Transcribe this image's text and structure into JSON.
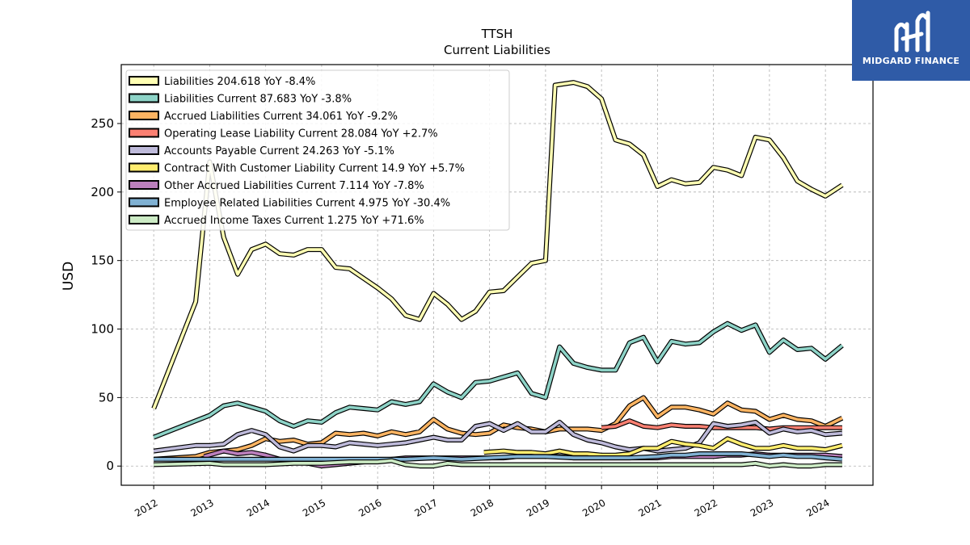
{
  "chart_data": {
    "type": "line",
    "title": "TTSH",
    "subtitle": "Current  Liabilities",
    "ylabel": "USD",
    "xlabel": "",
    "ylim": [
      -14,
      293
    ],
    "xlim": [
      2011.42,
      2024.85
    ],
    "yticks": [
      0,
      50,
      100,
      150,
      200,
      250
    ],
    "xtick_values": [
      2012,
      2013,
      2014,
      2015,
      2016,
      2017,
      2018,
      2019,
      2020,
      2021,
      2022,
      2023,
      2024
    ],
    "xtick_labels": [
      "2012",
      "2013",
      "2014",
      "2015",
      "2016",
      "2017",
      "2018",
      "2019",
      "2020",
      "2021",
      "2022",
      "2023",
      "2024"
    ],
    "grid": true,
    "legend_position": "top-left",
    "series": [
      {
        "name": "Liabilities",
        "legend": "Liabilities  204.618 YoY -8.4%",
        "color": "#ffffb3",
        "x": [
          2012.0,
          2012.75,
          2013.0,
          2013.25,
          2013.5,
          2013.75,
          2014.0,
          2014.25,
          2014.5,
          2014.75,
          2015.0,
          2015.25,
          2015.5,
          2015.75,
          2016.0,
          2016.25,
          2016.5,
          2016.75,
          2017.0,
          2017.25,
          2017.5,
          2017.75,
          2018.0,
          2018.25,
          2018.5,
          2018.75,
          2019.0,
          2019.17,
          2019.5,
          2019.75,
          2020.0,
          2020.25,
          2020.5,
          2020.75,
          2021.0,
          2021.25,
          2021.5,
          2021.75,
          2022.0,
          2022.25,
          2022.5,
          2022.75,
          2023.0,
          2023.25,
          2023.5,
          2023.75,
          2024.0,
          2024.3
        ],
        "y": [
          42,
          120,
          222,
          167,
          140,
          158,
          162,
          155,
          154,
          158,
          158,
          145,
          144,
          137,
          130,
          122,
          110,
          107,
          126,
          118,
          107,
          113,
          127,
          128,
          138,
          148,
          150,
          278,
          280,
          277,
          268,
          238,
          235,
          227,
          204,
          209,
          206,
          207,
          218,
          216,
          212,
          240,
          238,
          225,
          208,
          202,
          197,
          205
        ]
      },
      {
        "name": "Liabilities Current",
        "legend": "Liabilities Current  87.683 YoY -3.8%",
        "color": "#8dd3c7",
        "x": [
          2012.0,
          2012.75,
          2013.0,
          2013.25,
          2013.5,
          2013.75,
          2014.0,
          2014.25,
          2014.5,
          2014.75,
          2015.0,
          2015.25,
          2015.5,
          2015.75,
          2016.0,
          2016.25,
          2016.5,
          2016.75,
          2017.0,
          2017.25,
          2017.5,
          2017.75,
          2018.0,
          2018.25,
          2018.5,
          2018.75,
          2019.0,
          2019.25,
          2019.5,
          2019.75,
          2020.0,
          2020.25,
          2020.5,
          2020.75,
          2021.0,
          2021.25,
          2021.5,
          2021.75,
          2022.0,
          2022.25,
          2022.5,
          2022.75,
          2023.0,
          2023.25,
          2023.5,
          2023.75,
          2024.0,
          2024.3
        ],
        "y": [
          21,
          33,
          37,
          44,
          46,
          43,
          40,
          33,
          29,
          33,
          32,
          39,
          43,
          42,
          41,
          47,
          45,
          47,
          60,
          54,
          50,
          61,
          62,
          65,
          68,
          53,
          50,
          87,
          75,
          72,
          70,
          70,
          90,
          94,
          76,
          91,
          89,
          90,
          98,
          104,
          99,
          103,
          83,
          92,
          85,
          86,
          78,
          88
        ]
      },
      {
        "name": "Accrued Liabilities Current",
        "legend": "Accrued Liabilities Current  34.061 YoY -9.2%",
        "color": "#fdb462",
        "x": [
          2012.0,
          2012.75,
          2013.0,
          2013.25,
          2013.5,
          2013.75,
          2014.0,
          2014.25,
          2014.5,
          2014.75,
          2015.0,
          2015.25,
          2015.5,
          2015.75,
          2016.0,
          2016.25,
          2016.5,
          2016.75,
          2017.0,
          2017.25,
          2017.5,
          2017.75,
          2018.0,
          2018.25,
          2018.5,
          2018.75,
          2019.0,
          2019.25,
          2019.5,
          2019.75,
          2020.0,
          2020.25,
          2020.5,
          2020.75,
          2021.0,
          2021.25,
          2021.5,
          2021.75,
          2022.0,
          2022.25,
          2022.5,
          2022.75,
          2023.0,
          2023.25,
          2023.5,
          2023.75,
          2024.0,
          2024.3
        ],
        "y": [
          5,
          7,
          10,
          11,
          12,
          15,
          20,
          18,
          19,
          16,
          17,
          24,
          23,
          24,
          22,
          25,
          23,
          25,
          34,
          27,
          24,
          23,
          24,
          30,
          28,
          27,
          25,
          27,
          27,
          27,
          26,
          31,
          44,
          50,
          36,
          43,
          43,
          41,
          38,
          46,
          41,
          40,
          34,
          37,
          34,
          33,
          29,
          35
        ]
      },
      {
        "name": "Operating Lease Liability Current",
        "legend": "Operating Lease Liability Current  28.084 YoY +2.7%",
        "color": "#fb8072",
        "x": [
          2020.0,
          2020.25,
          2020.5,
          2020.75,
          2021.0,
          2021.25,
          2021.5,
          2021.75,
          2022.0,
          2022.25,
          2022.5,
          2022.75,
          2023.0,
          2023.25,
          2023.5,
          2023.75,
          2024.0,
          2024.3
        ],
        "y": [
          28,
          29,
          33,
          29,
          28,
          30,
          29,
          29,
          28,
          28,
          28,
          28,
          27,
          28,
          28,
          28,
          28,
          28
        ]
      },
      {
        "name": "Accounts Payable Current",
        "legend": "Accounts Payable Current  24.263 YoY -5.1%",
        "color": "#bebada",
        "x": [
          2012.0,
          2012.75,
          2013.0,
          2013.25,
          2013.5,
          2013.75,
          2014.0,
          2014.25,
          2014.5,
          2014.75,
          2015.0,
          2015.25,
          2015.5,
          2015.75,
          2016.0,
          2016.25,
          2016.5,
          2016.75,
          2017.0,
          2017.25,
          2017.5,
          2017.75,
          2018.0,
          2018.25,
          2018.5,
          2018.75,
          2019.0,
          2019.25,
          2019.5,
          2019.75,
          2020.0,
          2020.25,
          2020.5,
          2020.75,
          2021.0,
          2021.25,
          2021.5,
          2021.75,
          2022.0,
          2022.25,
          2022.5,
          2022.75,
          2023.0,
          2023.25,
          2023.5,
          2023.75,
          2024.0,
          2024.3
        ],
        "y": [
          11,
          15,
          15,
          16,
          23,
          26,
          23,
          14,
          11,
          15,
          15,
          14,
          17,
          16,
          15,
          16,
          17,
          19,
          21,
          19,
          19,
          29,
          31,
          26,
          31,
          25,
          25,
          32,
          23,
          19,
          17,
          14,
          12,
          13,
          11,
          12,
          13,
          17,
          31,
          29,
          30,
          32,
          24,
          27,
          25,
          26,
          23,
          24
        ]
      },
      {
        "name": "Contract With Customer Liability Current",
        "legend": "Contract With Customer Liability Current  14.9 YoY +5.7%",
        "color": "#ffed6f",
        "x": [
          2017.9,
          2018.25,
          2018.5,
          2018.75,
          2019.0,
          2019.25,
          2019.5,
          2019.75,
          2020.0,
          2020.25,
          2020.5,
          2020.75,
          2021.0,
          2021.25,
          2021.5,
          2021.75,
          2022.0,
          2022.25,
          2022.5,
          2022.75,
          2023.0,
          2023.25,
          2023.5,
          2023.75,
          2024.0,
          2024.3
        ],
        "y": [
          10,
          11,
          10,
          10,
          9,
          11,
          9,
          9,
          8,
          8,
          9,
          13,
          13,
          18,
          16,
          15,
          13,
          20,
          16,
          13,
          13,
          15,
          13,
          13,
          12,
          15
        ]
      },
      {
        "name": "Other Accrued Liabilities Current",
        "legend": "Other Accrued Liabilities Current  7.114 YoY -7.8%",
        "color": "#bc80bd",
        "x": [
          2012.9,
          2013.25,
          2013.5,
          2013.75,
          2014.0,
          2014.25,
          2014.5,
          2014.75,
          2015.0,
          2015.25,
          2015.5,
          2015.75,
          2016.0,
          2016.25,
          2016.5,
          2016.75,
          2017.0,
          2017.25,
          2017.5,
          2017.75,
          2018.0,
          2018.25,
          2018.5,
          2018.75,
          2019.0,
          2019.25,
          2019.5,
          2019.75,
          2020.0,
          2020.25,
          2020.5,
          2020.75,
          2021.0,
          2021.25,
          2021.5,
          2021.75,
          2022.0,
          2022.25,
          2022.5,
          2022.75,
          2023.0,
          2023.25,
          2023.5,
          2023.75,
          2024.0,
          2024.3
        ],
        "y": [
          7,
          11,
          9,
          10,
          8,
          5,
          3,
          2,
          0,
          1,
          2,
          3,
          4,
          5,
          6,
          6,
          6,
          6,
          6,
          6,
          6,
          6,
          7,
          7,
          7,
          7,
          6,
          6,
          6,
          6,
          6,
          6,
          6,
          7,
          7,
          7,
          7,
          8,
          8,
          9,
          8,
          8,
          8,
          8,
          8,
          7
        ]
      },
      {
        "name": "Employee Related Liabilities Current",
        "legend": "Employee Related Liabilities Current  4.975 YoY -30.4%",
        "color": "#80b1d3",
        "x": [
          2012.0,
          2013.0,
          2014.0,
          2015.0,
          2016.0,
          2016.5,
          2017.0,
          2017.5,
          2018.0,
          2018.5,
          2019.0,
          2019.5,
          2020.0,
          2020.5,
          2021.0,
          2021.25,
          2021.5,
          2021.75,
          2022.0,
          2022.25,
          2022.5,
          2022.75,
          2023.0,
          2023.25,
          2023.5,
          2023.75,
          2024.0,
          2024.3
        ],
        "y": [
          5,
          5,
          5,
          5,
          5,
          5,
          6,
          5,
          6,
          7,
          7,
          6,
          6,
          6,
          7,
          8,
          8,
          9,
          9,
          9,
          9,
          8,
          7,
          8,
          7,
          7,
          6,
          5
        ]
      },
      {
        "name": "Accrued Income Taxes Current",
        "legend": "Accrued Income Taxes Current  1.275 YoY +71.6%",
        "color": "#ccebc5",
        "x": [
          2012.0,
          2013.0,
          2013.25,
          2014.0,
          2014.5,
          2015.0,
          2015.5,
          2016.0,
          2016.25,
          2016.5,
          2016.75,
          2017.0,
          2017.25,
          2017.5,
          2018.0,
          2018.5,
          2019.0,
          2019.5,
          2020.0,
          2020.5,
          2021.0,
          2021.5,
          2022.0,
          2022.5,
          2022.75,
          2023.0,
          2023.25,
          2023.5,
          2023.75,
          2024.0,
          2024.3
        ],
        "y": [
          1,
          2,
          1,
          1,
          2,
          2,
          3,
          3,
          4,
          1,
          0,
          0,
          2,
          1,
          1,
          1,
          1,
          1,
          1,
          1,
          1,
          1,
          1,
          1,
          2,
          0,
          1,
          0,
          0,
          1,
          1
        ]
      }
    ]
  },
  "logo": {
    "name": "MIDGARD FINANCE",
    "background": "#2f5ba7"
  }
}
